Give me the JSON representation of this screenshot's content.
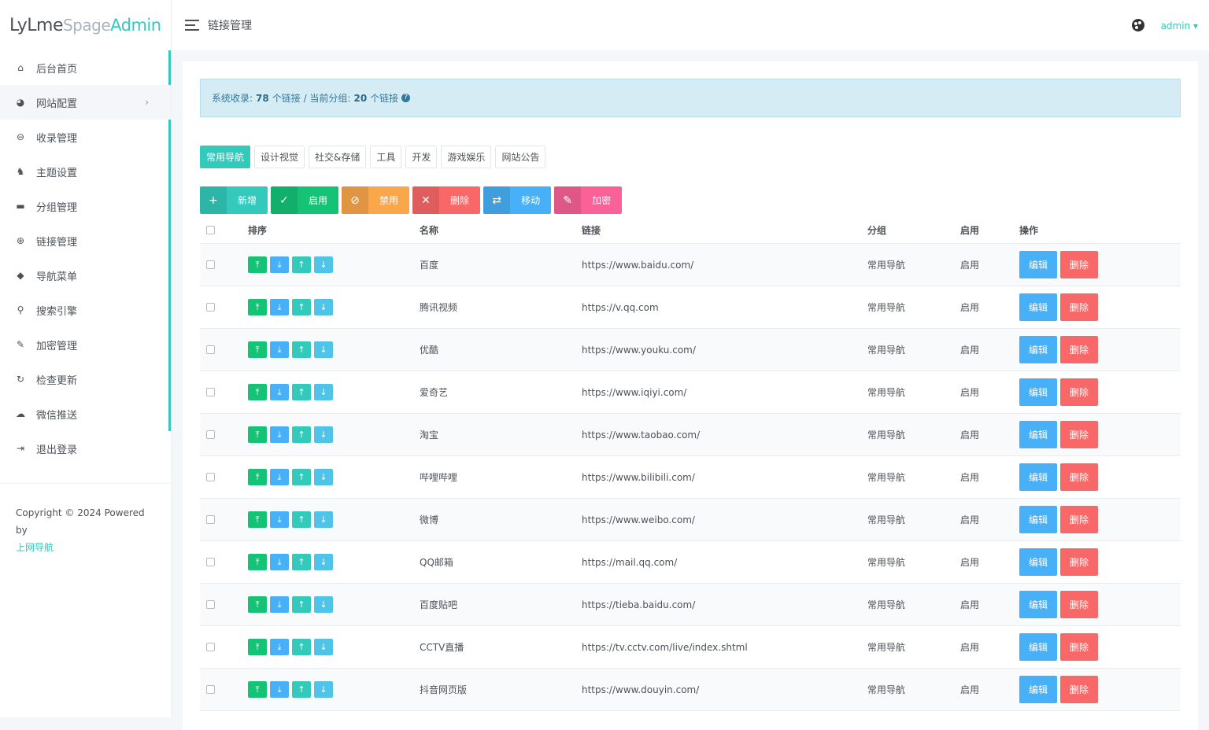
{
  "brand": {
    "part1": "LyLme",
    "part2": "Spage",
    "part3": "Admin"
  },
  "sidebar": {
    "items": [
      {
        "label": "后台首页",
        "icon": "home-icon",
        "glyph": "⌂"
      },
      {
        "label": "网站配置",
        "icon": "palette-icon",
        "glyph": "◕",
        "arrow": "›"
      },
      {
        "label": "收录管理",
        "icon": "link-icon",
        "glyph": "⊖"
      },
      {
        "label": "主题设置",
        "icon": "award-icon",
        "glyph": "♞"
      },
      {
        "label": "分组管理",
        "icon": "folder-icon",
        "glyph": "▬"
      },
      {
        "label": "链接管理",
        "icon": "globe-icon",
        "glyph": "⊕"
      },
      {
        "label": "导航菜单",
        "icon": "cube-icon",
        "glyph": "◆"
      },
      {
        "label": "搜索引擎",
        "icon": "search-icon",
        "glyph": "⚲"
      },
      {
        "label": "加密管理",
        "icon": "wrench-icon",
        "glyph": "✎"
      },
      {
        "label": "检查更新",
        "icon": "refresh-icon",
        "glyph": "↻"
      },
      {
        "label": "微信推送",
        "icon": "wechat-icon",
        "glyph": "☁"
      },
      {
        "label": "退出登录",
        "icon": "logout-icon",
        "glyph": "⇥"
      }
    ],
    "footer_text": "Copyright © 2024 Powered by",
    "footer_link": "上网导航"
  },
  "topbar": {
    "title": "链接管理",
    "user": "admin ▾"
  },
  "alert": {
    "prefix": "系统收录:",
    "total": "78",
    "total_unit": "个链接 / 当前分组:",
    "group_count": "20",
    "group_unit": "个链接",
    "help": "?"
  },
  "tabs": [
    "常用导航",
    "设计视觉",
    "社交&存储",
    "工具",
    "开发",
    "游戏娱乐",
    "网站公告"
  ],
  "toolbar": [
    {
      "label": "新增",
      "glyph": "+",
      "color": "#33cabb",
      "name": "add-button",
      "icon": "plus-icon"
    },
    {
      "label": "启用",
      "glyph": "✓",
      "color": "#15c377",
      "name": "enable-button",
      "icon": "check-icon"
    },
    {
      "label": "禁用",
      "glyph": "⊘",
      "color": "#faa64b",
      "name": "disable-button",
      "icon": "ban-icon"
    },
    {
      "label": "删除",
      "glyph": "✕",
      "color": "#f96868",
      "name": "delete-button",
      "icon": "close-icon"
    },
    {
      "label": "移动",
      "glyph": "⇄",
      "color": "#48b0f7",
      "name": "move-button",
      "icon": "move-icon"
    },
    {
      "label": "加密",
      "glyph": "✎",
      "color": "#f96197",
      "name": "encrypt-button",
      "icon": "wrench-icon"
    }
  ],
  "table": {
    "headers": {
      "sort": "排序",
      "name": "名称",
      "url": "链接",
      "group": "分组",
      "enabled": "启用",
      "ops": "操作"
    },
    "sort_buttons": [
      {
        "glyph": "⤒",
        "color": "#15c377",
        "name": "move-top-button"
      },
      {
        "glyph": "⤓",
        "color": "#48b0f7",
        "name": "move-bottom-button"
      },
      {
        "glyph": "↑",
        "color": "#33cabb",
        "name": "move-up-button"
      },
      {
        "glyph": "↓",
        "color": "#4fc3e8",
        "name": "move-down-button"
      }
    ],
    "edit_label": "编辑",
    "delete_label": "删除",
    "rows": [
      {
        "name": "百度",
        "url": "https://www.baidu.com/",
        "group": "常用导航",
        "enabled": "启用"
      },
      {
        "name": "腾讯视频",
        "url": "https://v.qq.com",
        "group": "常用导航",
        "enabled": "启用"
      },
      {
        "name": "优酷",
        "url": "https://www.youku.com/",
        "group": "常用导航",
        "enabled": "启用"
      },
      {
        "name": "爱奇艺",
        "url": "https://www.iqiyi.com/",
        "group": "常用导航",
        "enabled": "启用"
      },
      {
        "name": "淘宝",
        "url": "https://www.taobao.com/",
        "group": "常用导航",
        "enabled": "启用"
      },
      {
        "name": "哔哩哔哩",
        "url": "https://www.bilibili.com/",
        "group": "常用导航",
        "enabled": "启用"
      },
      {
        "name": "微博",
        "url": "https://www.weibo.com/",
        "group": "常用导航",
        "enabled": "启用"
      },
      {
        "name": "QQ邮箱",
        "url": "https://mail.qq.com/",
        "group": "常用导航",
        "enabled": "启用"
      },
      {
        "name": "百度贴吧",
        "url": "https://tieba.baidu.com/",
        "group": "常用导航",
        "enabled": "启用"
      },
      {
        "name": "CCTV直播",
        "url": "https://tv.cctv.com/live/index.shtml",
        "group": "常用导航",
        "enabled": "启用"
      },
      {
        "name": "抖音网页版",
        "url": "https://www.douyin.com/",
        "group": "常用导航",
        "enabled": "启用"
      }
    ]
  },
  "colors": {
    "accent": "#33cabb",
    "success": "#15c377",
    "info": "#48b0f7",
    "danger": "#f96868"
  }
}
